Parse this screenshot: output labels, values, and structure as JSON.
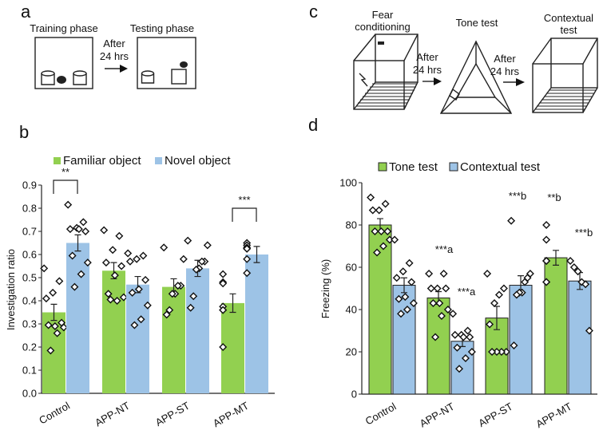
{
  "panels": {
    "a": "a",
    "b": "b",
    "c": "c",
    "d": "d"
  },
  "diagram_a": {
    "training": "Training phase",
    "testing": "Testing phase",
    "after": "After",
    "hrs": "24 hrs"
  },
  "diagram_c": {
    "fear1": "Fear",
    "fear2": "conditioning",
    "tone": "Tone test",
    "ctx1": "Contextual",
    "ctx2": "test",
    "after": "After",
    "hrs": "24 hrs"
  },
  "colors": {
    "green": "#92d050",
    "blue": "#9dc3e6"
  },
  "chart_data": [
    {
      "type": "bar",
      "title": "",
      "ylabel": "Investigation ratio",
      "xlabel": "",
      "ylim": [
        0,
        0.9
      ],
      "yticks": [
        "0.0",
        "0.1",
        "0.2",
        "0.3",
        "0.4",
        "0.5",
        "0.6",
        "0.7",
        "0.8",
        "0.9"
      ],
      "categories": [
        "Control",
        "APP-NT",
        "APP-ST",
        "APP-MT"
      ],
      "legend_position": "top",
      "series": [
        {
          "name": "Familiar object",
          "values": [
            0.35,
            0.53,
            0.46,
            0.39
          ],
          "sem": [
            0.035,
            0.035,
            0.035,
            0.04
          ],
          "points": [
            [
              0.54,
              0.485,
              0.435,
              0.41,
              0.305,
              0.29,
              0.295,
              0.285,
              0.26,
              0.185
            ],
            [
              0.705,
              0.68,
              0.62,
              0.565,
              0.55,
              0.51,
              0.43,
              0.415,
              0.4,
              0.405
            ],
            [
              0.63,
              0.58,
              0.465,
              0.465,
              0.43,
              0.43,
              0.36,
              0.34
            ],
            [
              0.515,
              0.48,
              0.475,
              0.375,
              0.36,
              0.36,
              0.2
            ]
          ]
        },
        {
          "name": "Novel object",
          "values": [
            0.65,
            0.47,
            0.54,
            0.6
          ],
          "sem": [
            0.035,
            0.035,
            0.035,
            0.035
          ],
          "points": [
            [
              0.815,
              0.74,
              0.715,
              0.71,
              0.7,
              0.71,
              0.595,
              0.565,
              0.515,
              0.46
            ],
            [
              0.605,
              0.595,
              0.58,
              0.57,
              0.49,
              0.45,
              0.435,
              0.38,
              0.32,
              0.295
            ],
            [
              0.66,
              0.64,
              0.57,
              0.57,
              0.54,
              0.535,
              0.42,
              0.37
            ],
            [
              0.65,
              0.64,
              0.63,
              0.625,
              0.625,
              0.58,
              0.52
            ]
          ]
        }
      ],
      "annotations": [
        {
          "group": "Control",
          "text": "**",
          "bracket": true
        },
        {
          "group": "APP-MT",
          "text": "***",
          "bracket": true
        }
      ]
    },
    {
      "type": "bar",
      "title": "",
      "ylabel": "Freezing (%)",
      "xlabel": "",
      "ylim": [
        0,
        100
      ],
      "yticks": [
        "0",
        "20",
        "40",
        "60",
        "80",
        "100"
      ],
      "categories": [
        "Control",
        "APP-NT",
        "APP-ST",
        "APP-MT"
      ],
      "legend_position": "top",
      "series": [
        {
          "name": "Tone test",
          "values": [
            80,
            45.5,
            36,
            64.5
          ],
          "sem": [
            3,
            3,
            5.5,
            3.5
          ],
          "points": [
            [
              93,
              90,
              87,
              87,
              77,
              77,
              77,
              73,
              70,
              67
            ],
            [
              57,
              57,
              50,
              50,
              50,
              43,
              43,
              40,
              37,
              27
            ],
            [
              57,
              50,
              47,
              43,
              33,
              20,
              20,
              20,
              20
            ],
            [
              80,
              73,
              63,
              63,
              63,
              53,
              53
            ]
          ]
        },
        {
          "name": "Contextual test",
          "values": [
            51.5,
            25,
            51.5,
            53.5
          ],
          "sem": [
            3.5,
            2.5,
            4.5,
            4
          ],
          "points": [
            [
              73,
              62,
              58,
              55,
              53,
              46,
              45,
              43,
              40,
              38
            ],
            [
              38,
              30,
              28,
              28,
              27,
              27,
              22,
              20,
              17,
              12
            ],
            [
              82,
              57,
              55,
              53,
              48,
              48,
              47,
              23
            ],
            [
              63,
              60,
              58,
              53,
              52,
              30
            ]
          ]
        }
      ],
      "annotations": [
        {
          "group": "APP-NT",
          "series": "Tone test",
          "text": "***a"
        },
        {
          "group": "APP-NT",
          "series": "Contextual test",
          "text": "***a"
        },
        {
          "group": "APP-ST",
          "series": "Contextual test",
          "text": "***b"
        },
        {
          "group": "APP-MT",
          "series": "Tone test",
          "text": "**b"
        },
        {
          "group": "APP-MT",
          "series": "Contextual test",
          "text": "***b"
        }
      ]
    }
  ]
}
